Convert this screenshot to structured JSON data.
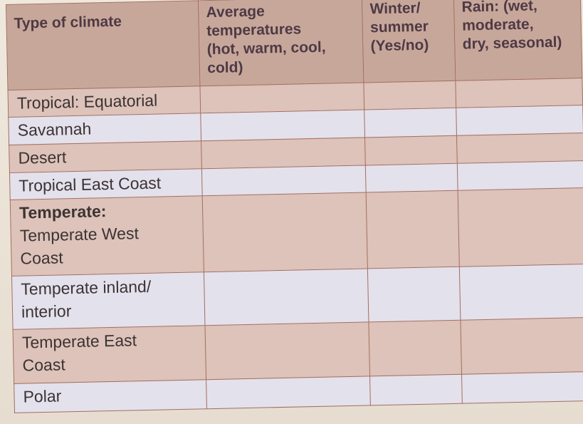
{
  "table": {
    "headers": [
      {
        "lines": [
          "Type of climate"
        ]
      },
      {
        "lines": [
          "Average",
          "temperatures",
          "(hot, warm, cool,",
          "cold)"
        ]
      },
      {
        "lines": [
          "Winter/",
          "summer",
          "(Yes/no)"
        ]
      },
      {
        "lines": [
          "Rain: (wet,",
          "moderate,",
          "dry, seasonal)"
        ]
      }
    ],
    "rows": [
      {
        "label": "Tropical: Equatorial"
      },
      {
        "label": "Savannah"
      },
      {
        "label": "Desert"
      },
      {
        "label": "Tropical East Coast"
      },
      {
        "label_bold": "Temperate:",
        "label_lines": [
          "Temperate West",
          "Coast"
        ]
      },
      {
        "label_lines": [
          "Temperate inland/",
          "interior"
        ]
      },
      {
        "label_lines": [
          "Temperate East",
          "Coast"
        ]
      },
      {
        "label": "Polar"
      }
    ]
  },
  "colors": {
    "header_bg": "#c8a79b",
    "row_pink": "#ddc3b9",
    "row_blue": "#e3e1ec",
    "border": "#a36d60"
  }
}
